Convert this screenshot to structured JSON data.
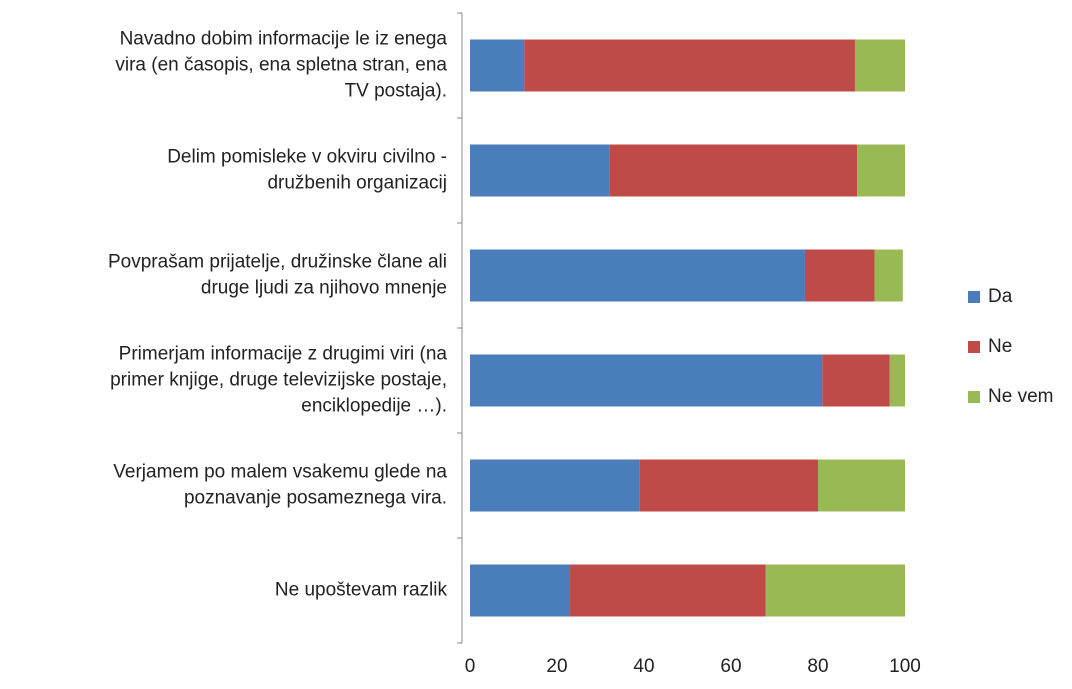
{
  "chart_data": {
    "type": "stacked-bar",
    "orientation": "horizontal",
    "categories": [
      [
        "Navadno dobim informacije le iz enega",
        "vira (en časopis, ena spletna stran, ena",
        "TV postaja)."
      ],
      [
        "Delim pomisleke v okviru civilno -",
        "družbenih organizacij"
      ],
      [
        "Povprašam prijatelje, družinske člane ali",
        "druge ljudi za njihovo mnenje"
      ],
      [
        "Primerjam informacije z drugimi viri (na",
        "primer knjige, druge televizijske postaje,",
        "enciklopedije …)."
      ],
      [
        "Verjamem po malem vsakemu glede na",
        "poznavanje posameznega vira."
      ],
      [
        "Ne upoštevam razlik"
      ]
    ],
    "series": [
      {
        "name": "Da",
        "color": "#4a7ebb",
        "values": [
          12.5,
          32,
          77,
          81,
          39,
          23
        ]
      },
      {
        "name": "Ne",
        "color": "#be4b48",
        "values": [
          76,
          57,
          16,
          15.5,
          41,
          45
        ]
      },
      {
        "name": "Ne vem",
        "color": "#98b954",
        "values": [
          11.5,
          11,
          6.5,
          3.5,
          20,
          32
        ]
      }
    ],
    "xlim": [
      0,
      100
    ],
    "xticks": [
      0,
      20,
      40,
      60,
      80,
      100
    ],
    "legend": "right"
  }
}
